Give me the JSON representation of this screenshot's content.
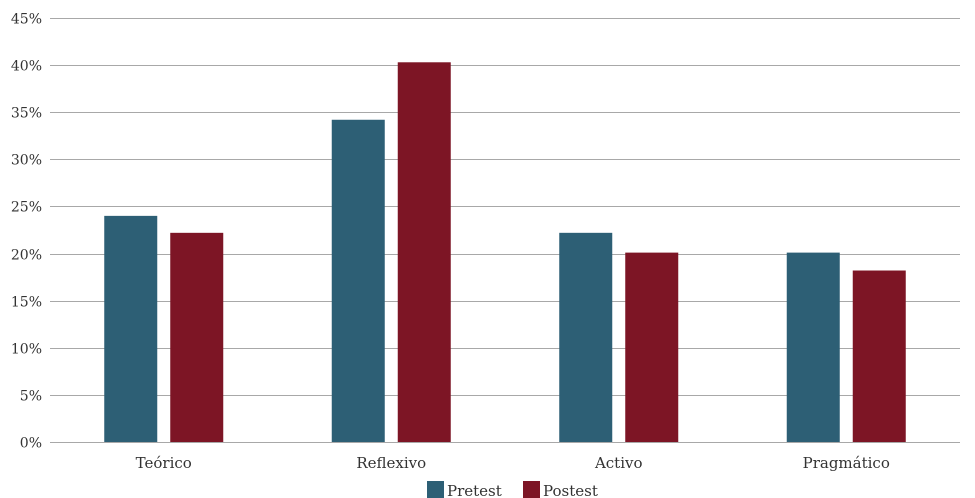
{
  "chart_data": {
    "type": "bar",
    "categories": [
      "Teórico",
      "Reflexivo",
      "Activo",
      "Pragmático"
    ],
    "series": [
      {
        "name": "Pretest",
        "values": [
          24,
          34.2,
          22.2,
          20.1
        ],
        "color": "#2d5f75"
      },
      {
        "name": "Postest",
        "values": [
          22.2,
          40.3,
          20.1,
          18.2
        ],
        "color": "#7d1525"
      }
    ],
    "y_ticks": [
      "0%",
      "5%",
      "10%",
      "15%",
      "20%",
      "25%",
      "30%",
      "35%",
      "40%",
      "45%"
    ],
    "ylim": [
      0,
      45
    ],
    "grid": true,
    "legend_position": "bottom-center"
  }
}
